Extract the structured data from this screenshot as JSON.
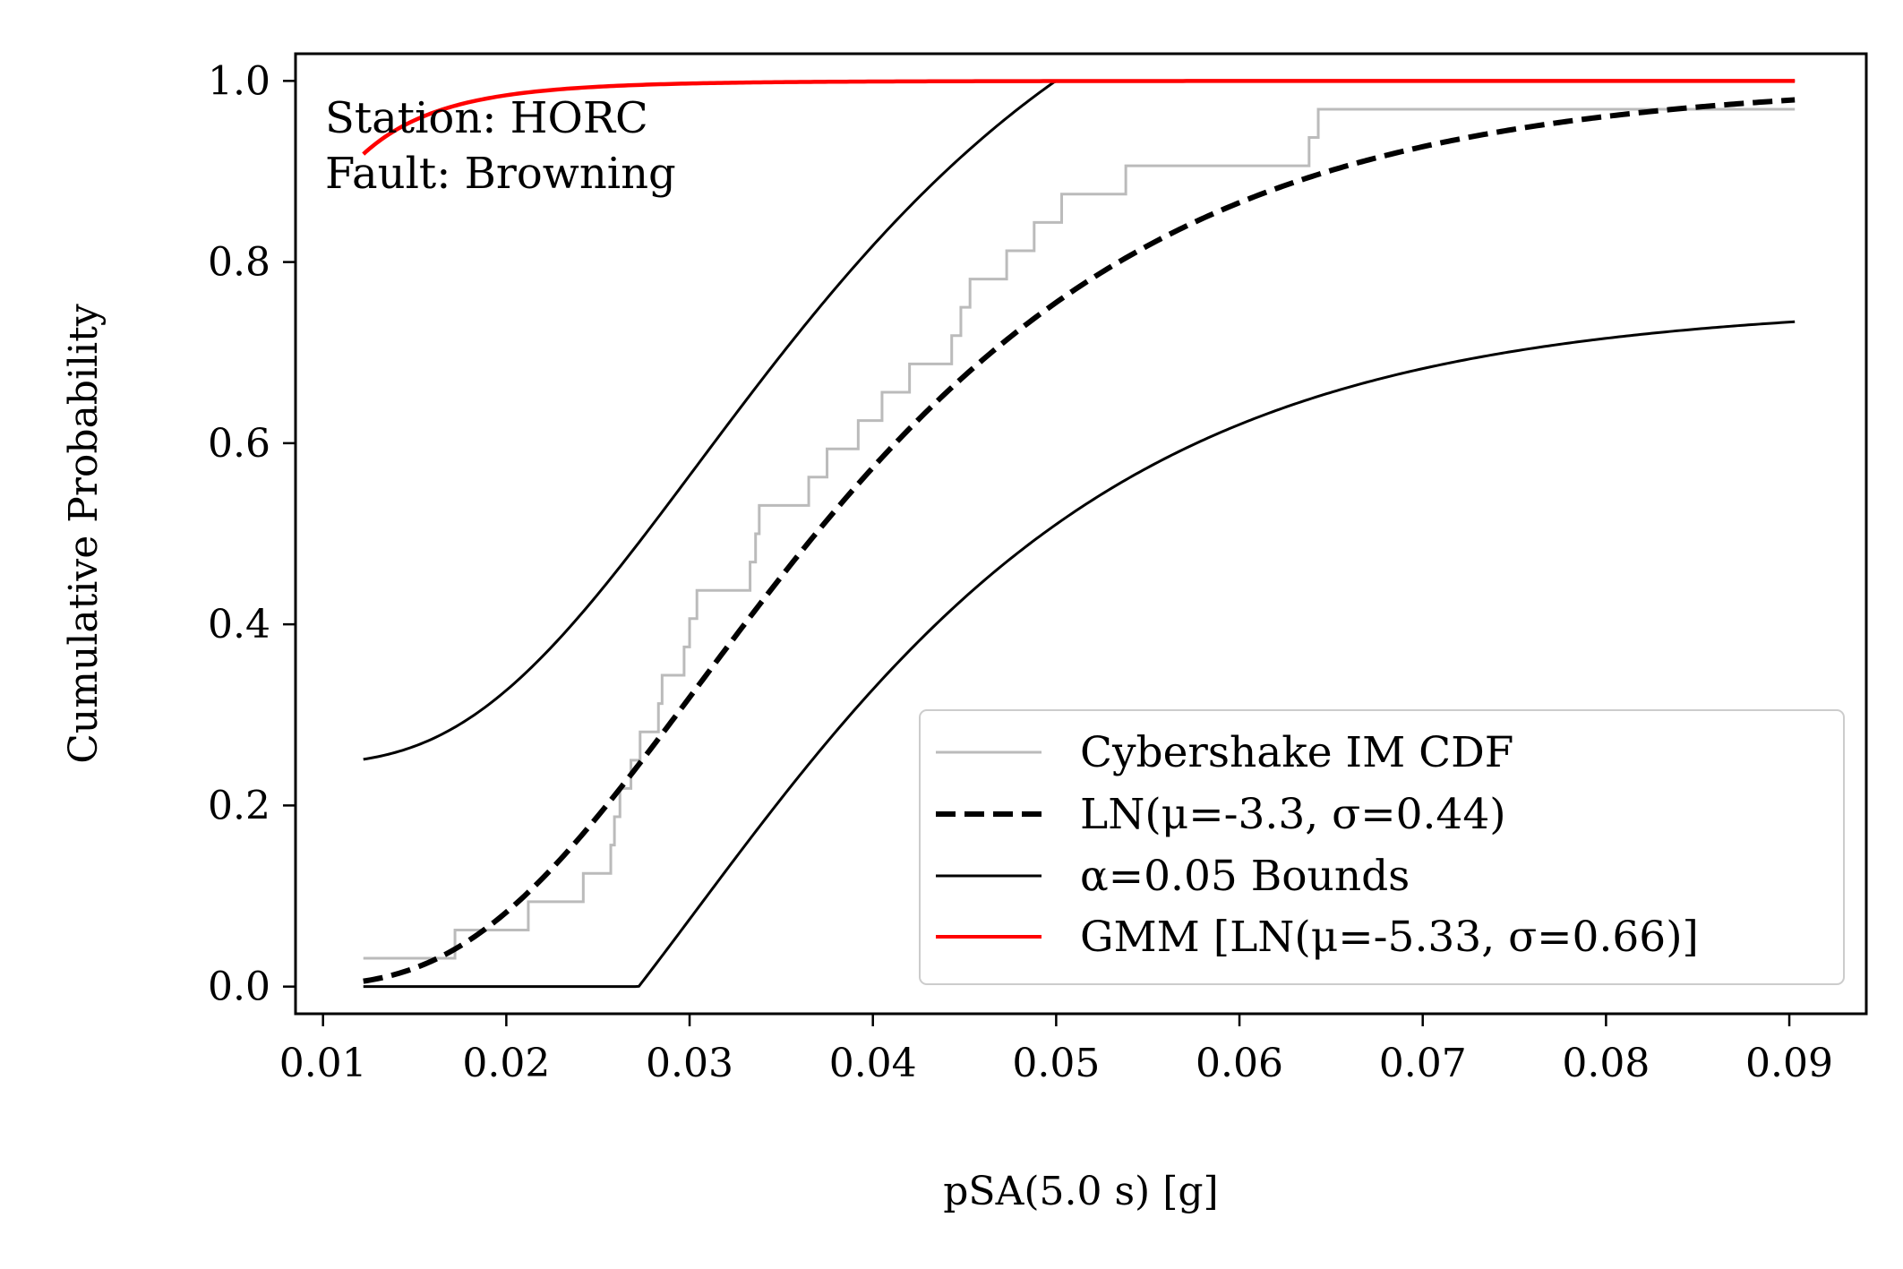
{
  "chart_data": {
    "type": "line",
    "title": "",
    "xlabel": "pSA(5.0 s) [g]",
    "ylabel": "Cumulative Probability",
    "xlim": [
      0.0085,
      0.0942
    ],
    "ylim": [
      -0.03,
      1.03
    ],
    "x_ticks": [
      0.01,
      0.02,
      0.03,
      0.04,
      0.05,
      0.06,
      0.07,
      0.08,
      0.09
    ],
    "x_tick_labels": [
      "0.01",
      "0.02",
      "0.03",
      "0.04",
      "0.05",
      "0.06",
      "0.07",
      "0.08",
      "0.09"
    ],
    "y_ticks": [
      0.0,
      0.2,
      0.4,
      0.6,
      0.8,
      1.0
    ],
    "y_tick_labels": [
      "0.0",
      "0.2",
      "0.4",
      "0.6",
      "0.8",
      "1.0"
    ],
    "grid": false,
    "legend_position": "lower-right",
    "annotations": [
      "Station: HORC",
      "Fault: Browning"
    ],
    "ln_fit": {
      "mu": -3.3,
      "sigma": 0.44
    },
    "gmm": {
      "mu": -5.33,
      "sigma": 0.66
    },
    "bounds_alpha": 0.05,
    "bounds_offset": 0.245,
    "series": [
      {
        "name": "Cybershake IM CDF",
        "style": "step",
        "color": "#bbbbbb",
        "x": [
          0.0122,
          0.0172,
          0.0212,
          0.0242,
          0.0257,
          0.0259,
          0.0262,
          0.0268,
          0.0273,
          0.0283,
          0.0285,
          0.0297,
          0.03,
          0.0304,
          0.0333,
          0.0336,
          0.0338,
          0.0365,
          0.0375,
          0.0392,
          0.0405,
          0.042,
          0.0443,
          0.0448,
          0.0453,
          0.0473,
          0.0488,
          0.0503,
          0.0538,
          0.0638,
          0.0643,
          0.0665,
          0.0742,
          0.0903
        ],
        "y": [
          0.03125,
          0.0625,
          0.09375,
          0.125,
          0.15625,
          0.1875,
          0.21875,
          0.25,
          0.28125,
          0.3125,
          0.34375,
          0.375,
          0.40625,
          0.4375,
          0.46875,
          0.5,
          0.53125,
          0.5625,
          0.59375,
          0.625,
          0.65625,
          0.6875,
          0.71875,
          0.75,
          0.78125,
          0.8125,
          0.84375,
          0.875,
          0.90625,
          0.9375,
          0.96875,
          0.96875,
          0.96875,
          0.96875
        ]
      },
      {
        "name": "LN(μ=-3.3, σ=0.44)",
        "style": "dashed",
        "color": "#000000",
        "x_range": [
          0.0122,
          0.0903
        ]
      },
      {
        "name": "α=0.05 Bounds",
        "style": "solid",
        "color": "#000000",
        "x_range": [
          0.0122,
          0.0903
        ]
      },
      {
        "name": "GMM [LN(μ=-5.33, σ=0.66)]",
        "style": "solid",
        "color": "#ff0000",
        "x_range": [
          0.0122,
          0.0903
        ]
      }
    ]
  }
}
